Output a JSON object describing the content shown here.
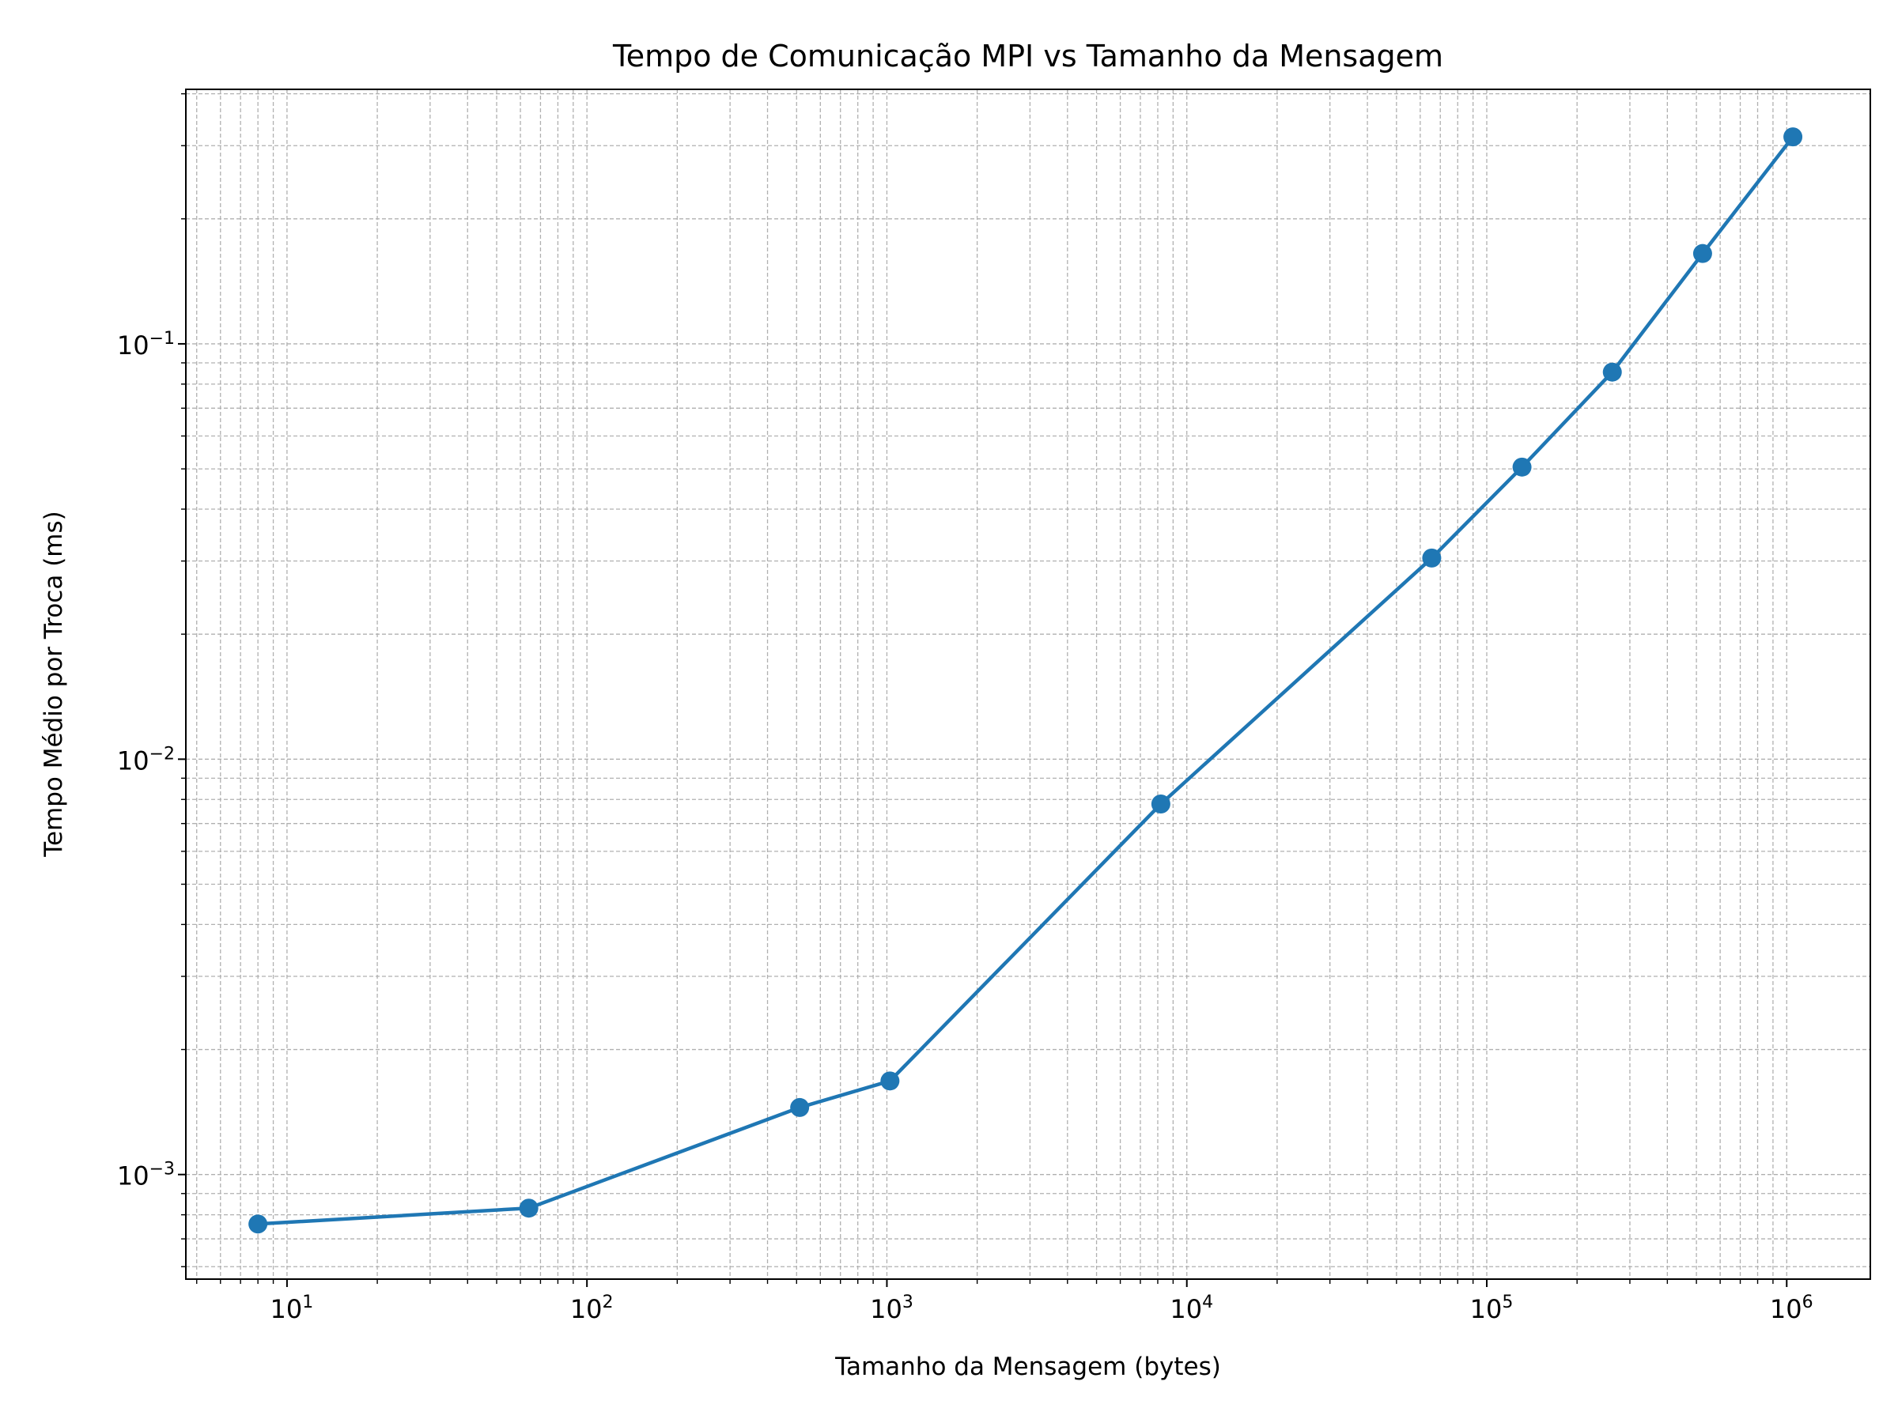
{
  "chart_data": {
    "type": "line",
    "title": "Tempo de Comunicação MPI vs Tamanho da Mensagem",
    "xlabel": "Tamanho da Mensagem (bytes)",
    "ylabel": "Tempo Médio por Troca (ms)",
    "xscale": "log",
    "yscale": "log",
    "xlim": [
      4.6,
      1900000
    ],
    "ylim": [
      0.00056,
      0.41
    ],
    "x_tick_labels": [
      {
        "base": "10",
        "exp": "1",
        "value": 10
      },
      {
        "base": "10",
        "exp": "2",
        "value": 100
      },
      {
        "base": "10",
        "exp": "3",
        "value": 1000
      },
      {
        "base": "10",
        "exp": "4",
        "value": 10000
      },
      {
        "base": "10",
        "exp": "5",
        "value": 100000
      },
      {
        "base": "10",
        "exp": "6",
        "value": 1000000
      }
    ],
    "y_tick_labels": [
      {
        "base": "10",
        "exp": "−3",
        "value": 0.001
      },
      {
        "base": "10",
        "exp": "−2",
        "value": 0.01
      },
      {
        "base": "10",
        "exp": "−1",
        "value": 0.1
      }
    ],
    "grid": true,
    "grid_style": "dashed, major and minor",
    "series": [
      {
        "color": "#1f77b4",
        "marker": "circle",
        "x": [
          8,
          64,
          512,
          1024,
          8192,
          65536,
          131072,
          262144,
          524288,
          1048576
        ],
        "y": [
          0.00076,
          0.00083,
          0.00145,
          0.00168,
          0.0078,
          0.0305,
          0.0505,
          0.0855,
          0.165,
          0.315
        ]
      }
    ]
  }
}
